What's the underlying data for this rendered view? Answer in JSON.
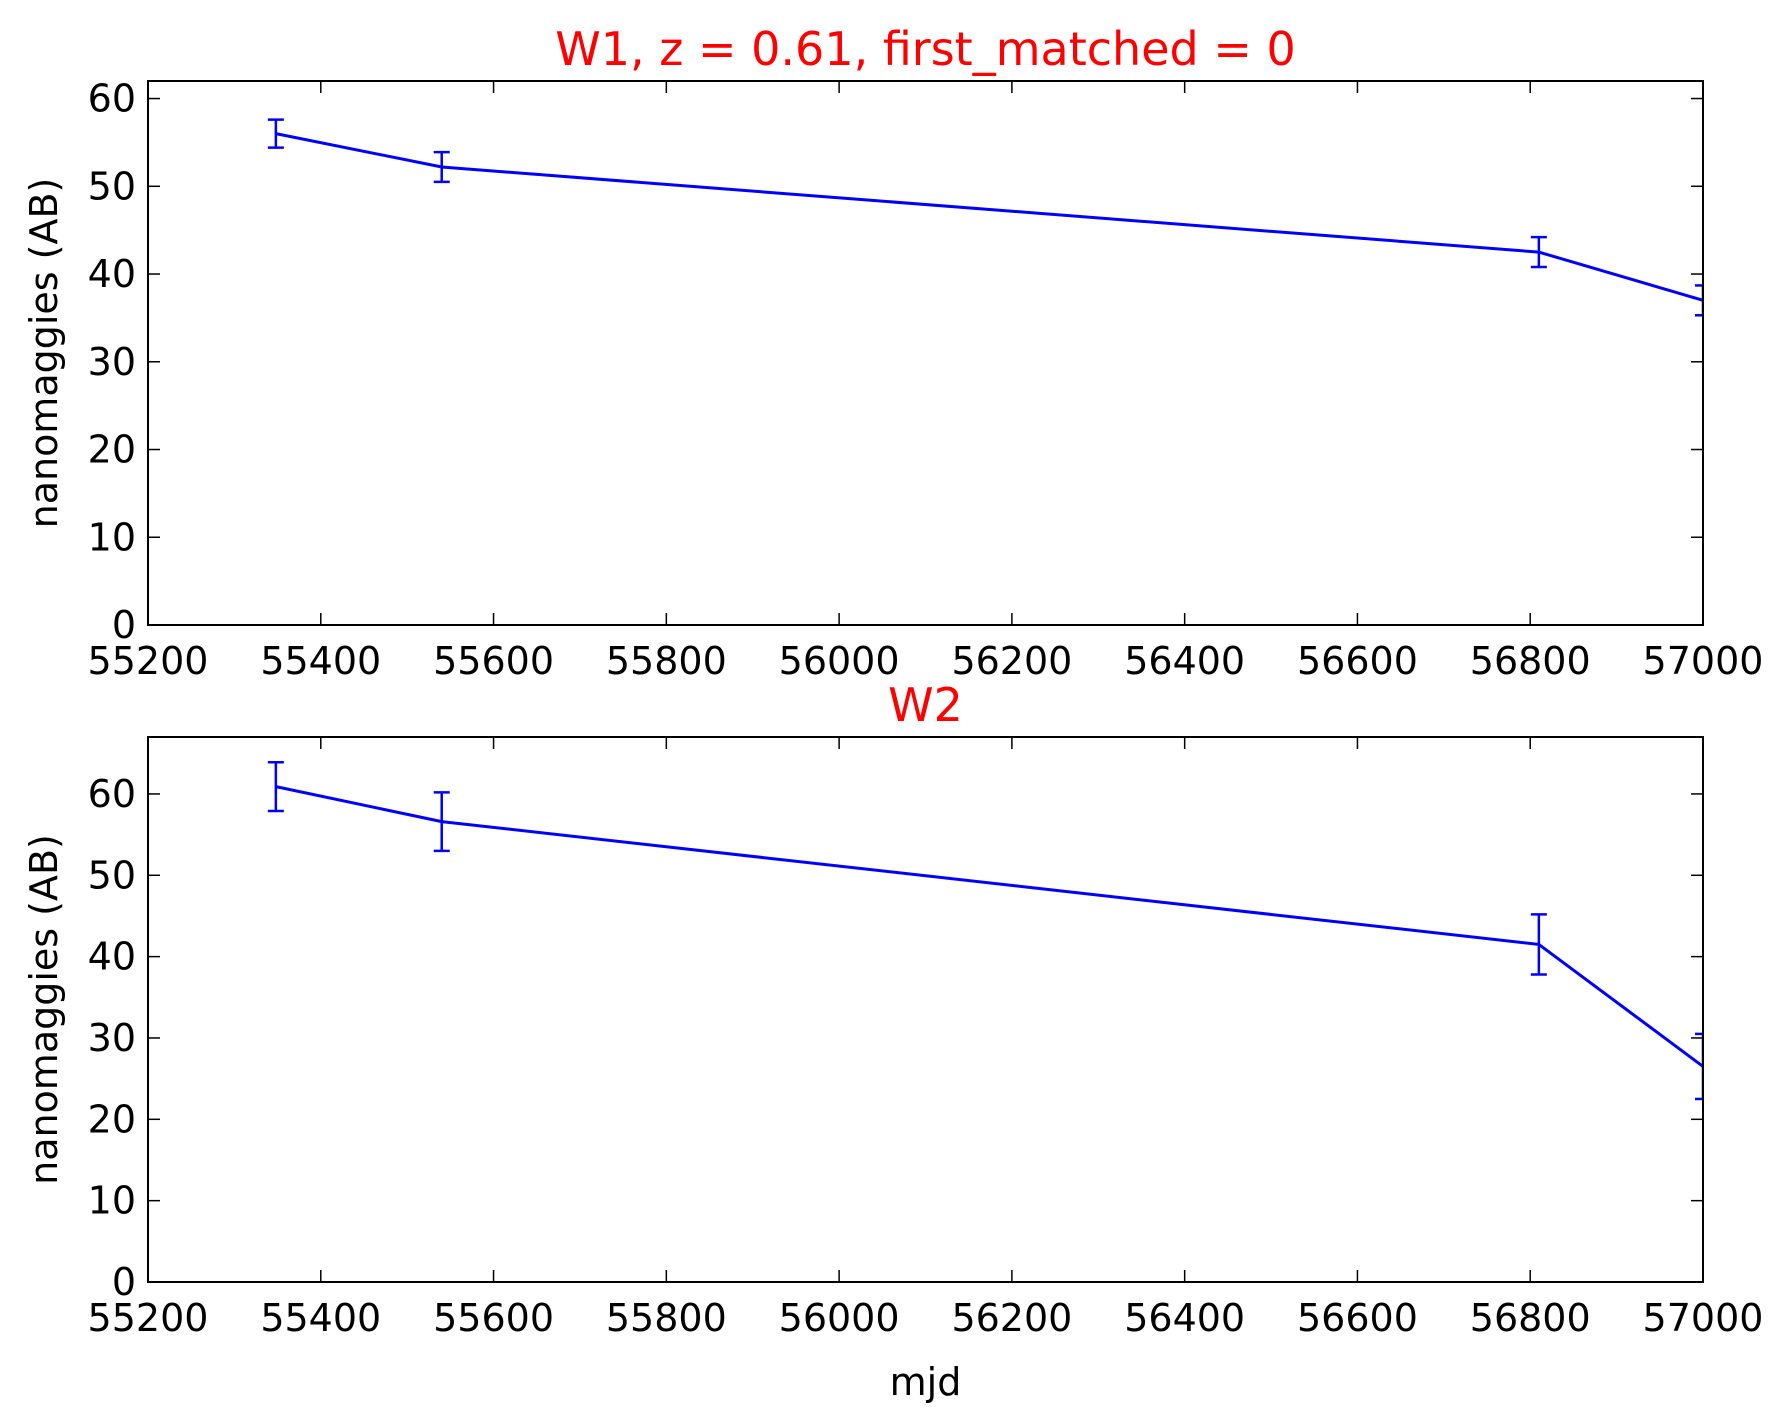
{
  "chart_data": [
    {
      "type": "line",
      "title": "W1, z = 0.61, first_matched = 0",
      "title_color": "#ff0000",
      "xlabel": "",
      "ylabel": "nanomaggies (AB)",
      "xlim": [
        55200,
        57000
      ],
      "ylim": [
        0,
        62
      ],
      "xticks": [
        "55200",
        "55400",
        "55600",
        "55800",
        "56000",
        "56200",
        "56400",
        "56600",
        "56800",
        "57000"
      ],
      "yticks": [
        "0",
        "10",
        "20",
        "30",
        "40",
        "50",
        "60"
      ],
      "grid": false,
      "series": [
        {
          "color": "#0000ff",
          "points": [
            {
              "x": 55348,
              "y": 56.0,
              "err": 1.6
            },
            {
              "x": 55540,
              "y": 52.2,
              "err": 1.7
            },
            {
              "x": 56810,
              "y": 42.5,
              "err": 1.7
            },
            {
              "x": 57000,
              "y": 37.0,
              "err": 1.7
            }
          ]
        }
      ]
    },
    {
      "type": "line",
      "title": "W2",
      "title_color": "#ff0000",
      "xlabel": "mjd",
      "ylabel": "nanomaggies (AB)",
      "xlim": [
        55200,
        57000
      ],
      "ylim": [
        0,
        67
      ],
      "xticks": [
        "55200",
        "55400",
        "55600",
        "55800",
        "56000",
        "56200",
        "56400",
        "56600",
        "56800",
        "57000"
      ],
      "yticks": [
        "0",
        "10",
        "20",
        "30",
        "40",
        "50",
        "60"
      ],
      "grid": false,
      "series": [
        {
          "color": "#0000ff",
          "points": [
            {
              "x": 55348,
              "y": 60.9,
              "err": 3.0
            },
            {
              "x": 55540,
              "y": 56.6,
              "err": 3.6
            },
            {
              "x": 56810,
              "y": 41.5,
              "err": 3.7
            },
            {
              "x": 57000,
              "y": 26.5,
              "err": 4.0
            }
          ]
        }
      ]
    }
  ]
}
